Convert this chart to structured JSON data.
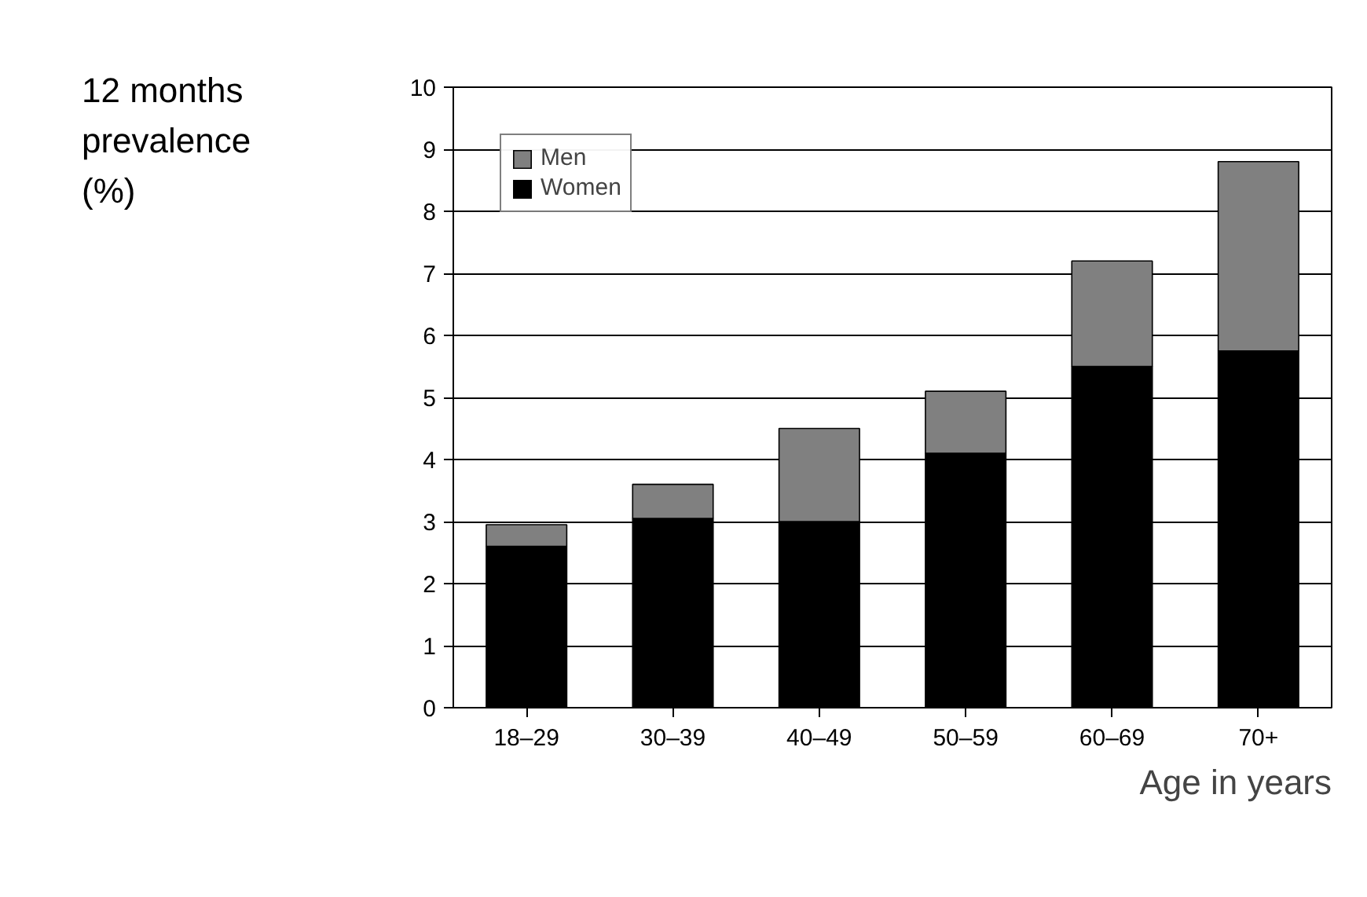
{
  "chart_data": {
    "type": "bar",
    "stacked": true,
    "ylabel": "12 months prevalence (%)",
    "xlabel": "Age in years",
    "categories": [
      "18–29",
      "30–39",
      "40–49",
      "50–59",
      "60–69",
      "70+"
    ],
    "series": [
      {
        "name": "Women",
        "color": "#000000",
        "values": [
          2.6,
          3.05,
          3.0,
          4.1,
          5.5,
          5.75
        ]
      },
      {
        "name": "Men",
        "color": "#808080",
        "values": [
          0.35,
          0.55,
          1.5,
          1.0,
          1.7,
          3.05
        ]
      }
    ],
    "ylim": [
      0,
      10
    ],
    "yticks": [
      0,
      1,
      2,
      3,
      4,
      5,
      6,
      7,
      8,
      9,
      10
    ],
    "grid": "y",
    "legend": "top left"
  }
}
